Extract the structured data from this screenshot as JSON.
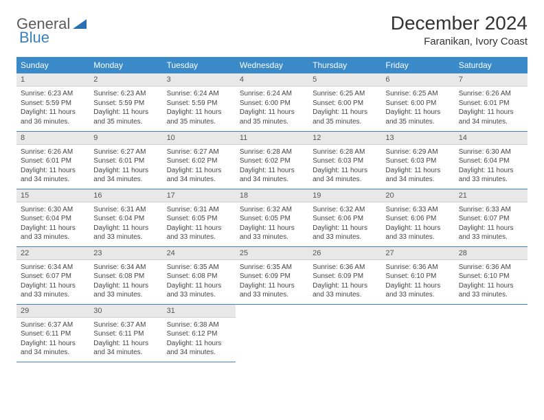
{
  "logo": {
    "general": "General",
    "blue": "Blue"
  },
  "title": "December 2024",
  "location": "Faranikan, Ivory Coast",
  "colors": {
    "header_bg": "#3a89c9",
    "header_text": "#ffffff",
    "daynum_bg": "#e8e8e8",
    "row_border": "#3a7fbf",
    "logo_blue": "#3a7fbf",
    "body_text": "#444444"
  },
  "weekdays": [
    "Sunday",
    "Monday",
    "Tuesday",
    "Wednesday",
    "Thursday",
    "Friday",
    "Saturday"
  ],
  "calendar": {
    "type": "table",
    "columns": 7,
    "rows": 5,
    "font_size_header": 12,
    "font_size_daynum": 11,
    "font_size_body": 10
  },
  "days": [
    {
      "n": "1",
      "sr": "6:23 AM",
      "ss": "5:59 PM",
      "dl": "11 hours and 36 minutes."
    },
    {
      "n": "2",
      "sr": "6:23 AM",
      "ss": "5:59 PM",
      "dl": "11 hours and 35 minutes."
    },
    {
      "n": "3",
      "sr": "6:24 AM",
      "ss": "5:59 PM",
      "dl": "11 hours and 35 minutes."
    },
    {
      "n": "4",
      "sr": "6:24 AM",
      "ss": "6:00 PM",
      "dl": "11 hours and 35 minutes."
    },
    {
      "n": "5",
      "sr": "6:25 AM",
      "ss": "6:00 PM",
      "dl": "11 hours and 35 minutes."
    },
    {
      "n": "6",
      "sr": "6:25 AM",
      "ss": "6:00 PM",
      "dl": "11 hours and 35 minutes."
    },
    {
      "n": "7",
      "sr": "6:26 AM",
      "ss": "6:01 PM",
      "dl": "11 hours and 34 minutes."
    },
    {
      "n": "8",
      "sr": "6:26 AM",
      "ss": "6:01 PM",
      "dl": "11 hours and 34 minutes."
    },
    {
      "n": "9",
      "sr": "6:27 AM",
      "ss": "6:01 PM",
      "dl": "11 hours and 34 minutes."
    },
    {
      "n": "10",
      "sr": "6:27 AM",
      "ss": "6:02 PM",
      "dl": "11 hours and 34 minutes."
    },
    {
      "n": "11",
      "sr": "6:28 AM",
      "ss": "6:02 PM",
      "dl": "11 hours and 34 minutes."
    },
    {
      "n": "12",
      "sr": "6:28 AM",
      "ss": "6:03 PM",
      "dl": "11 hours and 34 minutes."
    },
    {
      "n": "13",
      "sr": "6:29 AM",
      "ss": "6:03 PM",
      "dl": "11 hours and 34 minutes."
    },
    {
      "n": "14",
      "sr": "6:30 AM",
      "ss": "6:04 PM",
      "dl": "11 hours and 33 minutes."
    },
    {
      "n": "15",
      "sr": "6:30 AM",
      "ss": "6:04 PM",
      "dl": "11 hours and 33 minutes."
    },
    {
      "n": "16",
      "sr": "6:31 AM",
      "ss": "6:04 PM",
      "dl": "11 hours and 33 minutes."
    },
    {
      "n": "17",
      "sr": "6:31 AM",
      "ss": "6:05 PM",
      "dl": "11 hours and 33 minutes."
    },
    {
      "n": "18",
      "sr": "6:32 AM",
      "ss": "6:05 PM",
      "dl": "11 hours and 33 minutes."
    },
    {
      "n": "19",
      "sr": "6:32 AM",
      "ss": "6:06 PM",
      "dl": "11 hours and 33 minutes."
    },
    {
      "n": "20",
      "sr": "6:33 AM",
      "ss": "6:06 PM",
      "dl": "11 hours and 33 minutes."
    },
    {
      "n": "21",
      "sr": "6:33 AM",
      "ss": "6:07 PM",
      "dl": "11 hours and 33 minutes."
    },
    {
      "n": "22",
      "sr": "6:34 AM",
      "ss": "6:07 PM",
      "dl": "11 hours and 33 minutes."
    },
    {
      "n": "23",
      "sr": "6:34 AM",
      "ss": "6:08 PM",
      "dl": "11 hours and 33 minutes."
    },
    {
      "n": "24",
      "sr": "6:35 AM",
      "ss": "6:08 PM",
      "dl": "11 hours and 33 minutes."
    },
    {
      "n": "25",
      "sr": "6:35 AM",
      "ss": "6:09 PM",
      "dl": "11 hours and 33 minutes."
    },
    {
      "n": "26",
      "sr": "6:36 AM",
      "ss": "6:09 PM",
      "dl": "11 hours and 33 minutes."
    },
    {
      "n": "27",
      "sr": "6:36 AM",
      "ss": "6:10 PM",
      "dl": "11 hours and 33 minutes."
    },
    {
      "n": "28",
      "sr": "6:36 AM",
      "ss": "6:10 PM",
      "dl": "11 hours and 33 minutes."
    },
    {
      "n": "29",
      "sr": "6:37 AM",
      "ss": "6:11 PM",
      "dl": "11 hours and 34 minutes."
    },
    {
      "n": "30",
      "sr": "6:37 AM",
      "ss": "6:11 PM",
      "dl": "11 hours and 34 minutes."
    },
    {
      "n": "31",
      "sr": "6:38 AM",
      "ss": "6:12 PM",
      "dl": "11 hours and 34 minutes."
    }
  ],
  "labels": {
    "sunrise": "Sunrise: ",
    "sunset": "Sunset: ",
    "daylight": "Daylight: "
  }
}
